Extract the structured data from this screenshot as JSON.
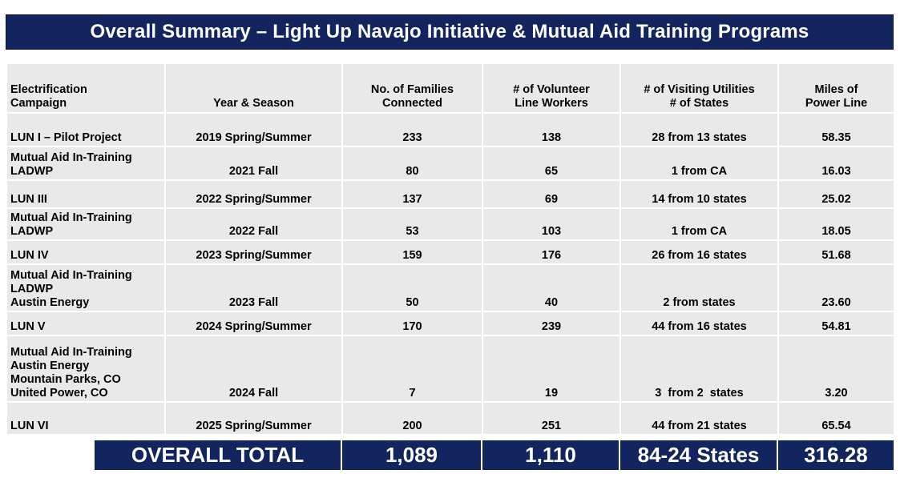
{
  "title": "Overall Summary – Light Up Navajo Initiative & Mutual Aid Training Programs",
  "headers": [
    "Electrification\nCampaign",
    "Year & Season",
    "No. of Families\nConnected",
    "# of Volunteer\nLine Workers",
    "# of Visiting Utilities\n# of States",
    "Miles of\nPower Line"
  ],
  "rows": [
    {
      "campaign": "LUN I – Pilot Project",
      "season": "2019 Spring/Summer",
      "families": "233",
      "workers": "138",
      "utilities": "28 from 13 states",
      "miles": "58.35"
    },
    {
      "campaign": "Mutual Aid In-Training\nLADWP",
      "season": "2021 Fall",
      "families": "80",
      "workers": "65",
      "utilities": "1 from CA",
      "miles": "16.03"
    },
    {
      "campaign": "LUN III",
      "season": "2022 Spring/Summer",
      "families": "137",
      "workers": "69",
      "utilities": "14 from 10 states",
      "miles": "25.02"
    },
    {
      "campaign": "Mutual Aid In-Training\nLADWP",
      "season": "2022 Fall",
      "families": "53",
      "workers": "103",
      "utilities": "1 from CA",
      "miles": "18.05"
    },
    {
      "campaign": "LUN IV",
      "season": "2023 Spring/Summer",
      "families": "159",
      "workers": "176",
      "utilities": "26 from 16 states",
      "miles": "51.68"
    },
    {
      "campaign": "Mutual Aid In-Training\nLADWP\nAustin Energy",
      "season": "2023 Fall",
      "families": "50",
      "workers": "40",
      "utilities": "2 from states",
      "miles": "23.60"
    },
    {
      "campaign": "LUN V",
      "season": "2024 Spring/Summer",
      "families": "170",
      "workers": "239",
      "utilities": "44 from 16 states",
      "miles": "54.81"
    },
    {
      "campaign": "Mutual Aid In-Training\nAustin Energy\nMountain Parks, CO\nUnited Power, CO",
      "season": "2024 Fall",
      "families": "7",
      "workers": "19",
      "utilities": "3  from 2  states",
      "miles": "3.20"
    },
    {
      "campaign": "LUN VI",
      "season": "2025 Spring/Summer",
      "families": "200",
      "workers": "251",
      "utilities": "44 from 21 states",
      "miles": "65.54"
    }
  ],
  "total": {
    "label": "OVERALL TOTAL",
    "families": "1,089",
    "workers": "1,110",
    "utilities": "84-24 States",
    "miles": "316.28"
  },
  "colors": {
    "navy": "#13255e",
    "cell_gray": "#e9e9e9"
  }
}
